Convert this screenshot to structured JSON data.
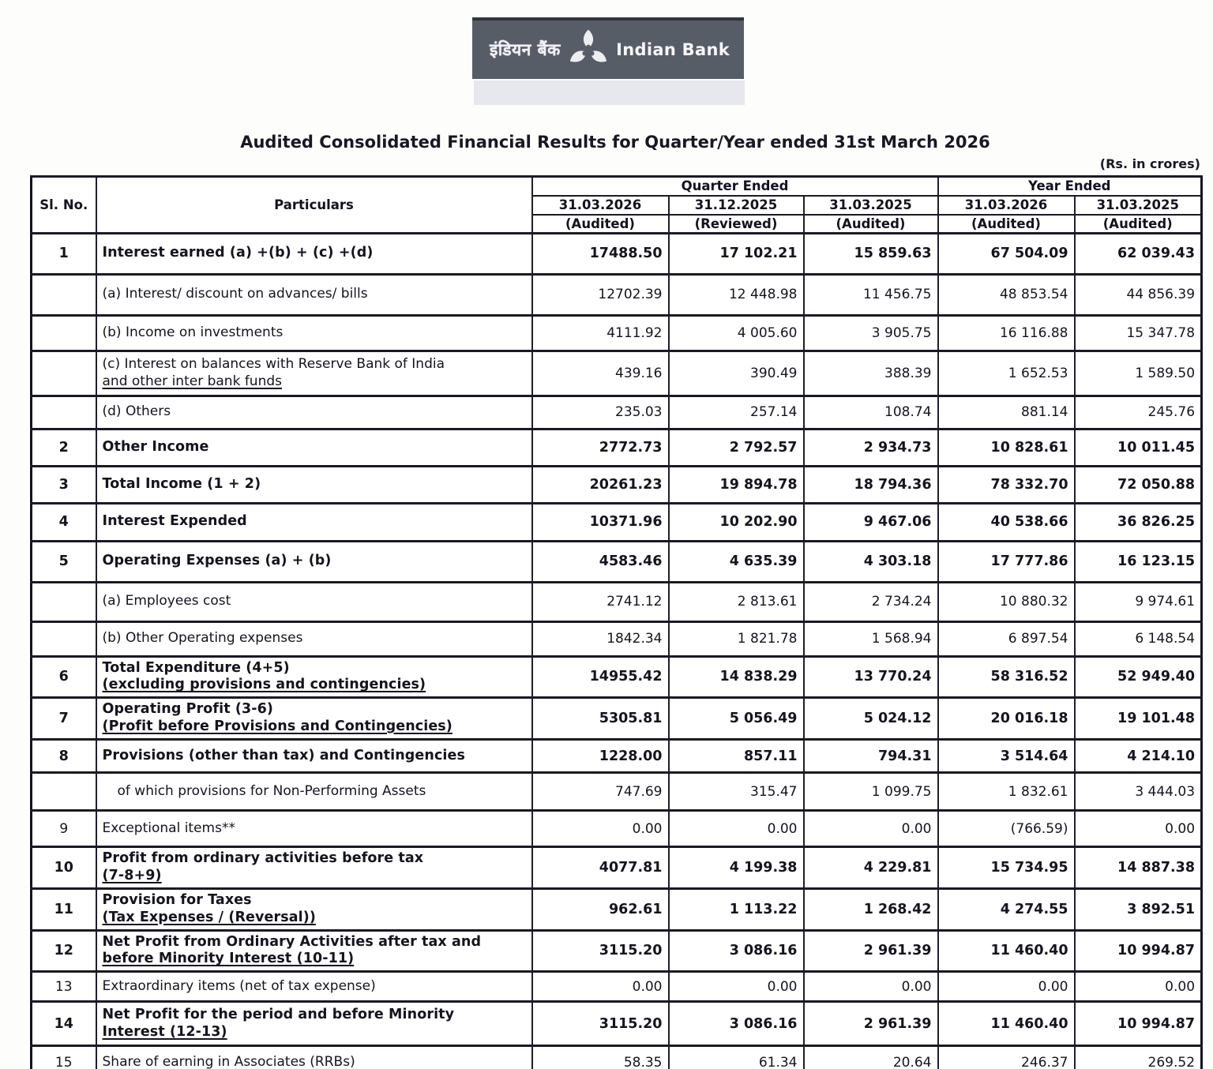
{
  "logo": {
    "hindi": "इंडियन बैंक",
    "english": "Indian Bank"
  },
  "title": "Audited Consolidated Financial Results for Quarter/Year ended 31st March 2026",
  "units_note": "(Rs. in crores)",
  "table": {
    "headers": {
      "sl_no": "Sl. No.",
      "particulars": "Particulars",
      "quarter_ended": "Quarter Ended",
      "year_ended": "Year Ended",
      "columns": [
        {
          "date": "31.03.2026",
          "status": "(Audited)"
        },
        {
          "date": "31.12.2025",
          "status": "(Reviewed)"
        },
        {
          "date": "31.03.2025",
          "status": "(Audited)"
        },
        {
          "date": "31.03.2026",
          "status": "(Audited)"
        },
        {
          "date": "31.03.2025",
          "status": "(Audited)"
        }
      ]
    },
    "rows": [
      {
        "sl": "1",
        "label": "Interest earned (a) +(b) + (c) +(d)",
        "label2": "",
        "u2": false,
        "bold": true,
        "indent": false,
        "values": [
          "17488.50",
          "17 102.21",
          "15 859.63",
          "67 504.09",
          "62 039.43"
        ]
      },
      {
        "sl": "",
        "label": "(a) Interest/ discount on advances/ bills",
        "label2": "",
        "u2": false,
        "bold": false,
        "indent": false,
        "values": [
          "12702.39",
          "12 448.98",
          "11 456.75",
          "48 853.54",
          "44 856.39"
        ]
      },
      {
        "sl": "",
        "label": "(b) Income on investments",
        "label2": "",
        "u2": false,
        "bold": false,
        "indent": false,
        "values": [
          "4111.92",
          "4 005.60",
          "3 905.75",
          "16 116.88",
          "15 347.78"
        ]
      },
      {
        "sl": "",
        "label": "(c) Interest on balances with Reserve Bank of India",
        "label2": "and other inter bank funds",
        "u2": true,
        "bold": false,
        "indent": false,
        "values": [
          "439.16",
          "390.49",
          "388.39",
          "1 652.53",
          "1 589.50"
        ]
      },
      {
        "sl": "",
        "label": "(d) Others",
        "label2": "",
        "u2": false,
        "bold": false,
        "indent": false,
        "values": [
          "235.03",
          "257.14",
          "108.74",
          "881.14",
          "245.76"
        ]
      },
      {
        "sl": "2",
        "label": "Other Income",
        "label2": "",
        "u2": false,
        "bold": true,
        "indent": false,
        "values": [
          "2772.73",
          "2 792.57",
          "2 934.73",
          "10 828.61",
          "10 011.45"
        ]
      },
      {
        "sl": "3",
        "label": "Total Income (1 + 2)",
        "label2": "",
        "u2": false,
        "bold": true,
        "indent": false,
        "values": [
          "20261.23",
          "19 894.78",
          "18 794.36",
          "78 332.70",
          "72 050.88"
        ]
      },
      {
        "sl": "4",
        "label": "Interest Expended",
        "label2": "",
        "u2": false,
        "bold": true,
        "indent": false,
        "values": [
          "10371.96",
          "10 202.90",
          "9 467.06",
          "40 538.66",
          "36 826.25"
        ]
      },
      {
        "sl": "5",
        "label": "Operating Expenses (a) + (b)",
        "label2": "",
        "u2": false,
        "bold": true,
        "indent": false,
        "values": [
          "4583.46",
          "4 635.39",
          "4 303.18",
          "17 777.86",
          "16 123.15"
        ]
      },
      {
        "sl": "",
        "label": "(a) Employees cost",
        "label2": "",
        "u2": false,
        "bold": false,
        "indent": false,
        "values": [
          "2741.12",
          "2 813.61",
          "2 734.24",
          "10 880.32",
          "9 974.61"
        ]
      },
      {
        "sl": "",
        "label": "(b) Other Operating expenses",
        "label2": "",
        "u2": false,
        "bold": false,
        "indent": false,
        "values": [
          "1842.34",
          "1 821.78",
          "1 568.94",
          "6 897.54",
          "6 148.54"
        ]
      },
      {
        "sl": "6",
        "label": "Total Expenditure (4+5)",
        "label2": "(excluding provisions and contingencies)",
        "u2": true,
        "bold": true,
        "indent": false,
        "values": [
          "14955.42",
          "14 838.29",
          "13 770.24",
          "58 316.52",
          "52 949.40"
        ]
      },
      {
        "sl": "7",
        "label": "Operating Profit (3-6)",
        "label2": "(Profit before Provisions and Contingencies)",
        "u2": true,
        "bold": true,
        "indent": false,
        "values": [
          "5305.81",
          "5 056.49",
          "5 024.12",
          "20 016.18",
          "19 101.48"
        ]
      },
      {
        "sl": "8",
        "label": "Provisions (other than tax) and Contingencies",
        "label2": "",
        "u2": false,
        "bold": true,
        "indent": false,
        "values": [
          "1228.00",
          "857.11",
          "794.31",
          "3 514.64",
          "4 214.10"
        ]
      },
      {
        "sl": "",
        "label": "of which provisions for Non-Performing Assets",
        "label2": "",
        "u2": false,
        "bold": false,
        "indent": true,
        "values": [
          "747.69",
          "315.47",
          "1 099.75",
          "1 832.61",
          "3 444.03"
        ]
      },
      {
        "sl": "9",
        "label": "Exceptional items**",
        "label2": "",
        "u2": false,
        "bold": false,
        "indent": false,
        "values": [
          "0.00",
          "0.00",
          "0.00",
          "(766.59)",
          "0.00"
        ]
      },
      {
        "sl": "10",
        "label": "Profit from ordinary activities before tax",
        "label2": "(7-8+9)",
        "u2": true,
        "bold": true,
        "indent": false,
        "values": [
          "4077.81",
          "4 199.38",
          "4 229.81",
          "15 734.95",
          "14 887.38"
        ]
      },
      {
        "sl": "11",
        "label": "Provision for Taxes",
        "label2": "(Tax Expenses / (Reversal))",
        "u2": true,
        "bold": true,
        "indent": false,
        "values": [
          "962.61",
          "1 113.22",
          "1 268.42",
          "4 274.55",
          "3 892.51"
        ]
      },
      {
        "sl": "12",
        "label": "Net Profit from Ordinary Activities after tax and",
        "label2": "before Minority Interest (10-11)",
        "u2": true,
        "bold": true,
        "indent": false,
        "values": [
          "3115.20",
          "3 086.16",
          "2 961.39",
          "11 460.40",
          "10 994.87"
        ]
      },
      {
        "sl": "13",
        "label": "Extraordinary items (net of tax expense)",
        "label2": "",
        "u2": false,
        "bold": false,
        "indent": false,
        "values": [
          "0.00",
          "0.00",
          "0.00",
          "0.00",
          "0.00"
        ]
      },
      {
        "sl": "14",
        "label": "Net Profit  for the period and before Minority",
        "label2": "Interest (12-13)",
        "u2": true,
        "bold": true,
        "indent": false,
        "values": [
          "3115.20",
          "3 086.16",
          "2 961.39",
          "11 460.40",
          "10 994.87"
        ]
      },
      {
        "sl": "15",
        "label": "Share of earning in Associates (RRBs)",
        "label2": "",
        "u2": false,
        "bold": false,
        "indent": false,
        "values": [
          "58.35",
          "61.34",
          "20.64",
          "246.37",
          "269.52"
        ]
      }
    ]
  }
}
